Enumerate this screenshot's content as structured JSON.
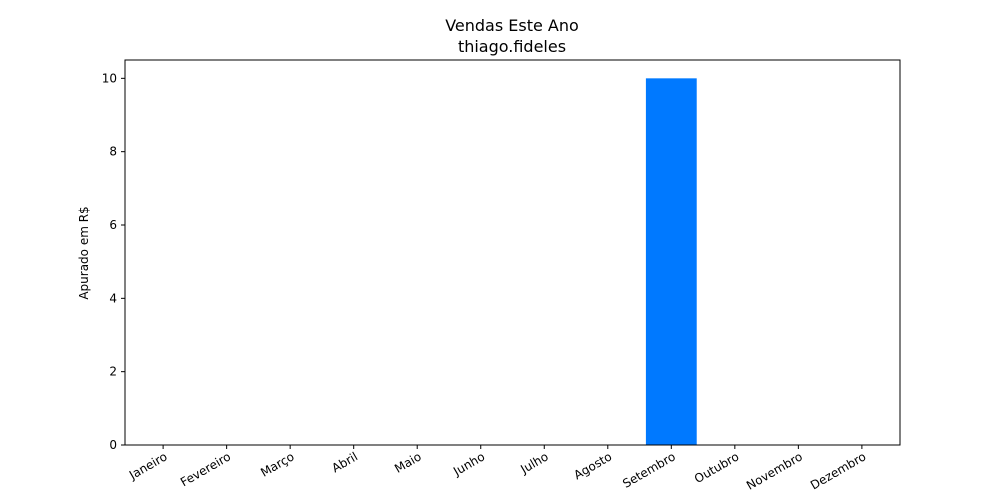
{
  "chart_data": {
    "type": "bar",
    "title": "Vendas Este Ano",
    "subtitle": "thiago.fideles",
    "xlabel": "",
    "ylabel": "Apurado em R$",
    "categories": [
      "Janeiro",
      "Fevereiro",
      "Março",
      "Abril",
      "Maio",
      "Junho",
      "Julho",
      "Agosto",
      "Setembro",
      "Outubro",
      "Novembro",
      "Dezembro"
    ],
    "values": [
      0,
      0,
      0,
      0,
      0,
      0,
      0,
      0,
      10,
      0,
      0,
      0
    ],
    "ylim": [
      0,
      10.5
    ],
    "yticks": [
      0,
      2,
      4,
      6,
      8,
      10
    ],
    "bar_color": "#0079ff",
    "grid": false,
    "legend": "none"
  }
}
